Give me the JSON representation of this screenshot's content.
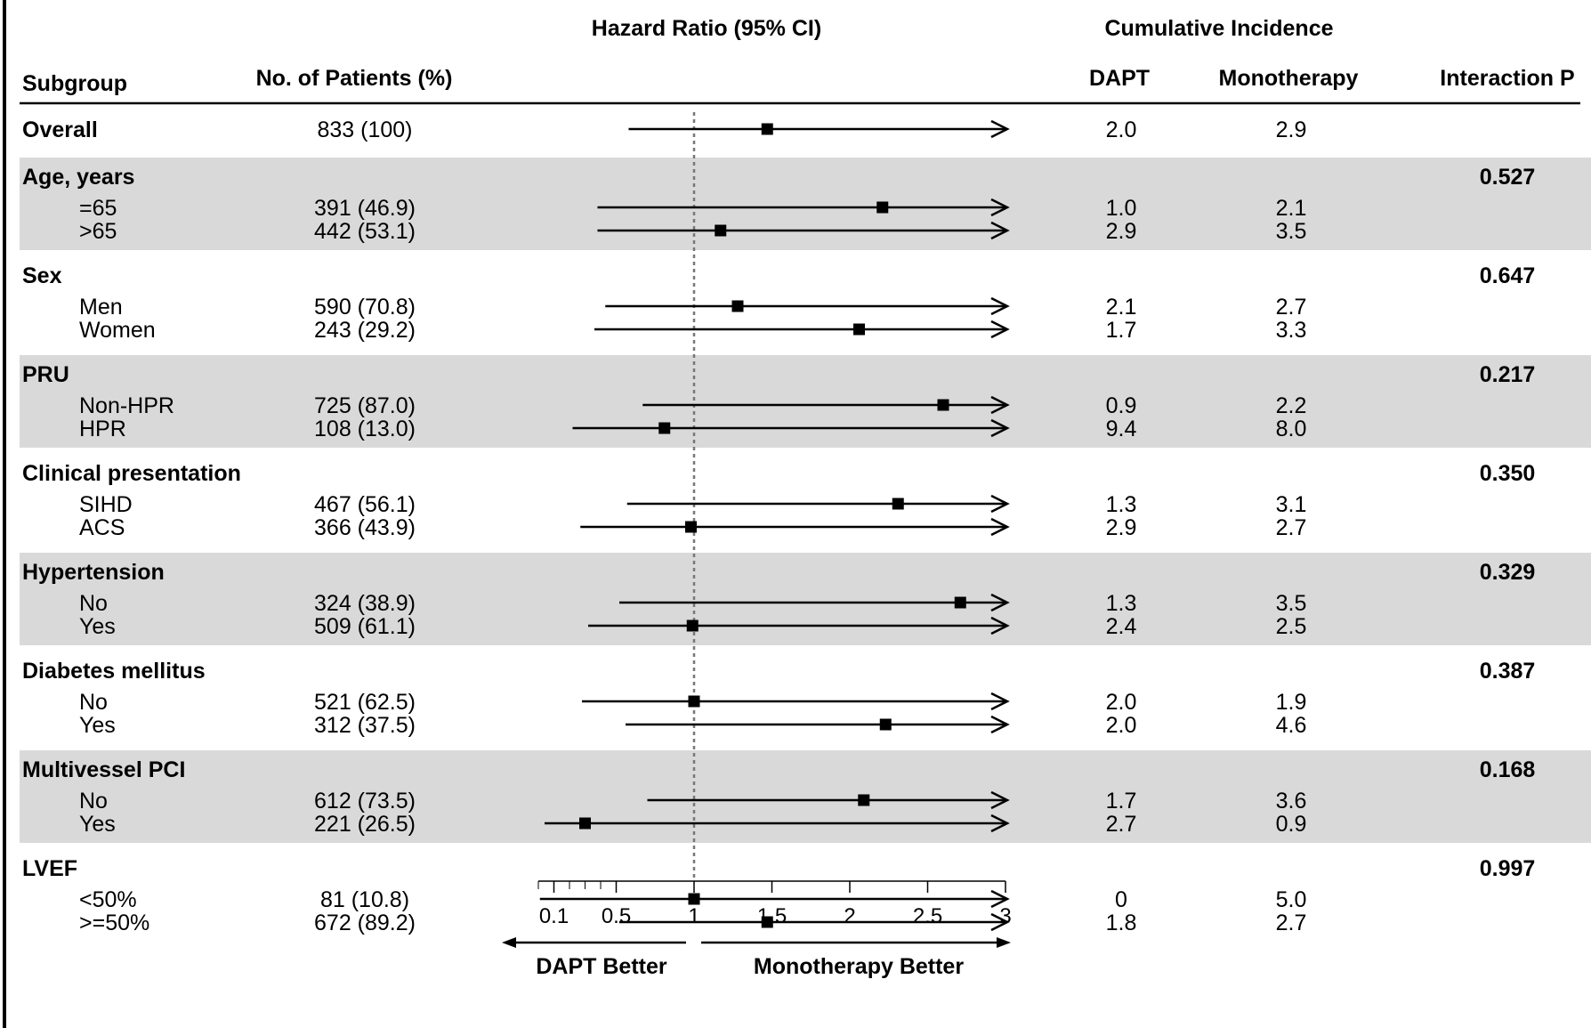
{
  "chart_data": {
    "type": "forest",
    "headers": {
      "subgroup": "Subgroup",
      "patients": "No. of Patients (%)",
      "hazard_ratio": "Hazard Ratio (95% CI)",
      "cumulative_incidence": "Cumulative Incidence",
      "dapt": "DAPT",
      "monotherapy": "Monotherapy",
      "interaction": "Interaction P"
    },
    "x_axis": {
      "ticks": [
        0.1,
        0.5,
        1,
        1.5,
        2,
        2.5,
        3
      ],
      "tick_labels": [
        "0.1",
        "0.5",
        "1",
        "1.5",
        "2",
        "2.5",
        "3"
      ],
      "reference": 1,
      "range": [
        0,
        3
      ],
      "left_label": "DAPT Better",
      "right_label": "Monotherapy Better"
    },
    "groups": [
      {
        "name": "Overall",
        "shaded": false,
        "p": "",
        "rows": [
          {
            "label": "",
            "patients": "833 (100)",
            "hr": 1.47,
            "lo": 0.58,
            "hi": 3,
            "dapt": "2.0",
            "mono": "2.9"
          }
        ]
      },
      {
        "name": "Age, years",
        "shaded": true,
        "p": "0.527",
        "rows": [
          {
            "label": "=65",
            "patients": "391 (46.9)",
            "hr": 2.21,
            "lo": 0.38,
            "hi": 3,
            "dapt": "1.0",
            "mono": "2.1"
          },
          {
            "label": ">65",
            "patients": "442 (53.1)",
            "hr": 1.17,
            "lo": 0.38,
            "hi": 3,
            "dapt": "2.9",
            "mono": "3.5"
          }
        ]
      },
      {
        "name": "Sex",
        "shaded": false,
        "p": "0.647",
        "rows": [
          {
            "label": "Men",
            "patients": "590 (70.8)",
            "hr": 1.28,
            "lo": 0.43,
            "hi": 3,
            "dapt": "2.1",
            "mono": "2.7"
          },
          {
            "label": "Women",
            "patients": "243 (29.2)",
            "hr": 2.06,
            "lo": 0.36,
            "hi": 3,
            "dapt": "1.7",
            "mono": "3.3"
          }
        ]
      },
      {
        "name": "PRU",
        "shaded": true,
        "p": "0.217",
        "rows": [
          {
            "label": "Non-HPR",
            "patients": "725 (87.0)",
            "hr": 2.6,
            "lo": 0.67,
            "hi": 3,
            "dapt": "0.9",
            "mono": "2.2"
          },
          {
            "label": "HPR",
            "patients": "108 (13.0)",
            "hr": 0.81,
            "lo": 0.22,
            "hi": 3,
            "dapt": "9.4",
            "mono": "8.0"
          }
        ]
      },
      {
        "name": "Clinical presentation",
        "shaded": false,
        "p": "0.350",
        "rows": [
          {
            "label": "SIHD",
            "patients": "467 (56.1)",
            "hr": 2.31,
            "lo": 0.57,
            "hi": 3,
            "dapt": "1.3",
            "mono": "3.1"
          },
          {
            "label": "ACS",
            "patients": "366 (43.9)",
            "hr": 0.98,
            "lo": 0.27,
            "hi": 3,
            "dapt": "2.9",
            "mono": "2.7"
          }
        ]
      },
      {
        "name": "Hypertension",
        "shaded": true,
        "p": "0.329",
        "rows": [
          {
            "label": "No",
            "patients": "324 (38.9)",
            "hr": 2.71,
            "lo": 0.52,
            "hi": 3,
            "dapt": "1.3",
            "mono": "3.5"
          },
          {
            "label": "Yes",
            "patients": "509 (61.1)",
            "hr": 0.99,
            "lo": 0.32,
            "hi": 3,
            "dapt": "2.4",
            "mono": "2.5"
          }
        ]
      },
      {
        "name": "Diabetes mellitus",
        "shaded": false,
        "p": "0.387",
        "rows": [
          {
            "label": "No",
            "patients": "521 (62.5)",
            "hr": 1.0,
            "lo": 0.28,
            "hi": 3,
            "dapt": "2.0",
            "mono": "1.9"
          },
          {
            "label": "Yes",
            "patients": "312 (37.5)",
            "hr": 2.23,
            "lo": 0.56,
            "hi": 3,
            "dapt": "2.0",
            "mono": "4.6"
          }
        ]
      },
      {
        "name": "Multivessel PCI",
        "shaded": true,
        "p": "0.168",
        "rows": [
          {
            "label": "No",
            "patients": "612 (73.5)",
            "hr": 2.09,
            "lo": 0.7,
            "hi": 3,
            "dapt": "1.7",
            "mono": "3.6"
          },
          {
            "label": "Yes",
            "patients": "221 (26.5)",
            "hr": 0.3,
            "lo": 0.04,
            "hi": 3,
            "dapt": "2.7",
            "mono": "0.9"
          }
        ]
      },
      {
        "name": "LVEF",
        "shaded": false,
        "p": "0.997",
        "rows": [
          {
            "label": "<50%",
            "patients": "81 (10.8)",
            "hr": 1.0,
            "lo": 0.01,
            "hi": 3,
            "dapt": "0",
            "mono": "5.0"
          },
          {
            "label": ">=50%",
            "patients": "672 (89.2)",
            "hr": 1.47,
            "lo": 0.52,
            "hi": 3,
            "dapt": "1.8",
            "mono": "2.7"
          }
        ]
      }
    ]
  }
}
